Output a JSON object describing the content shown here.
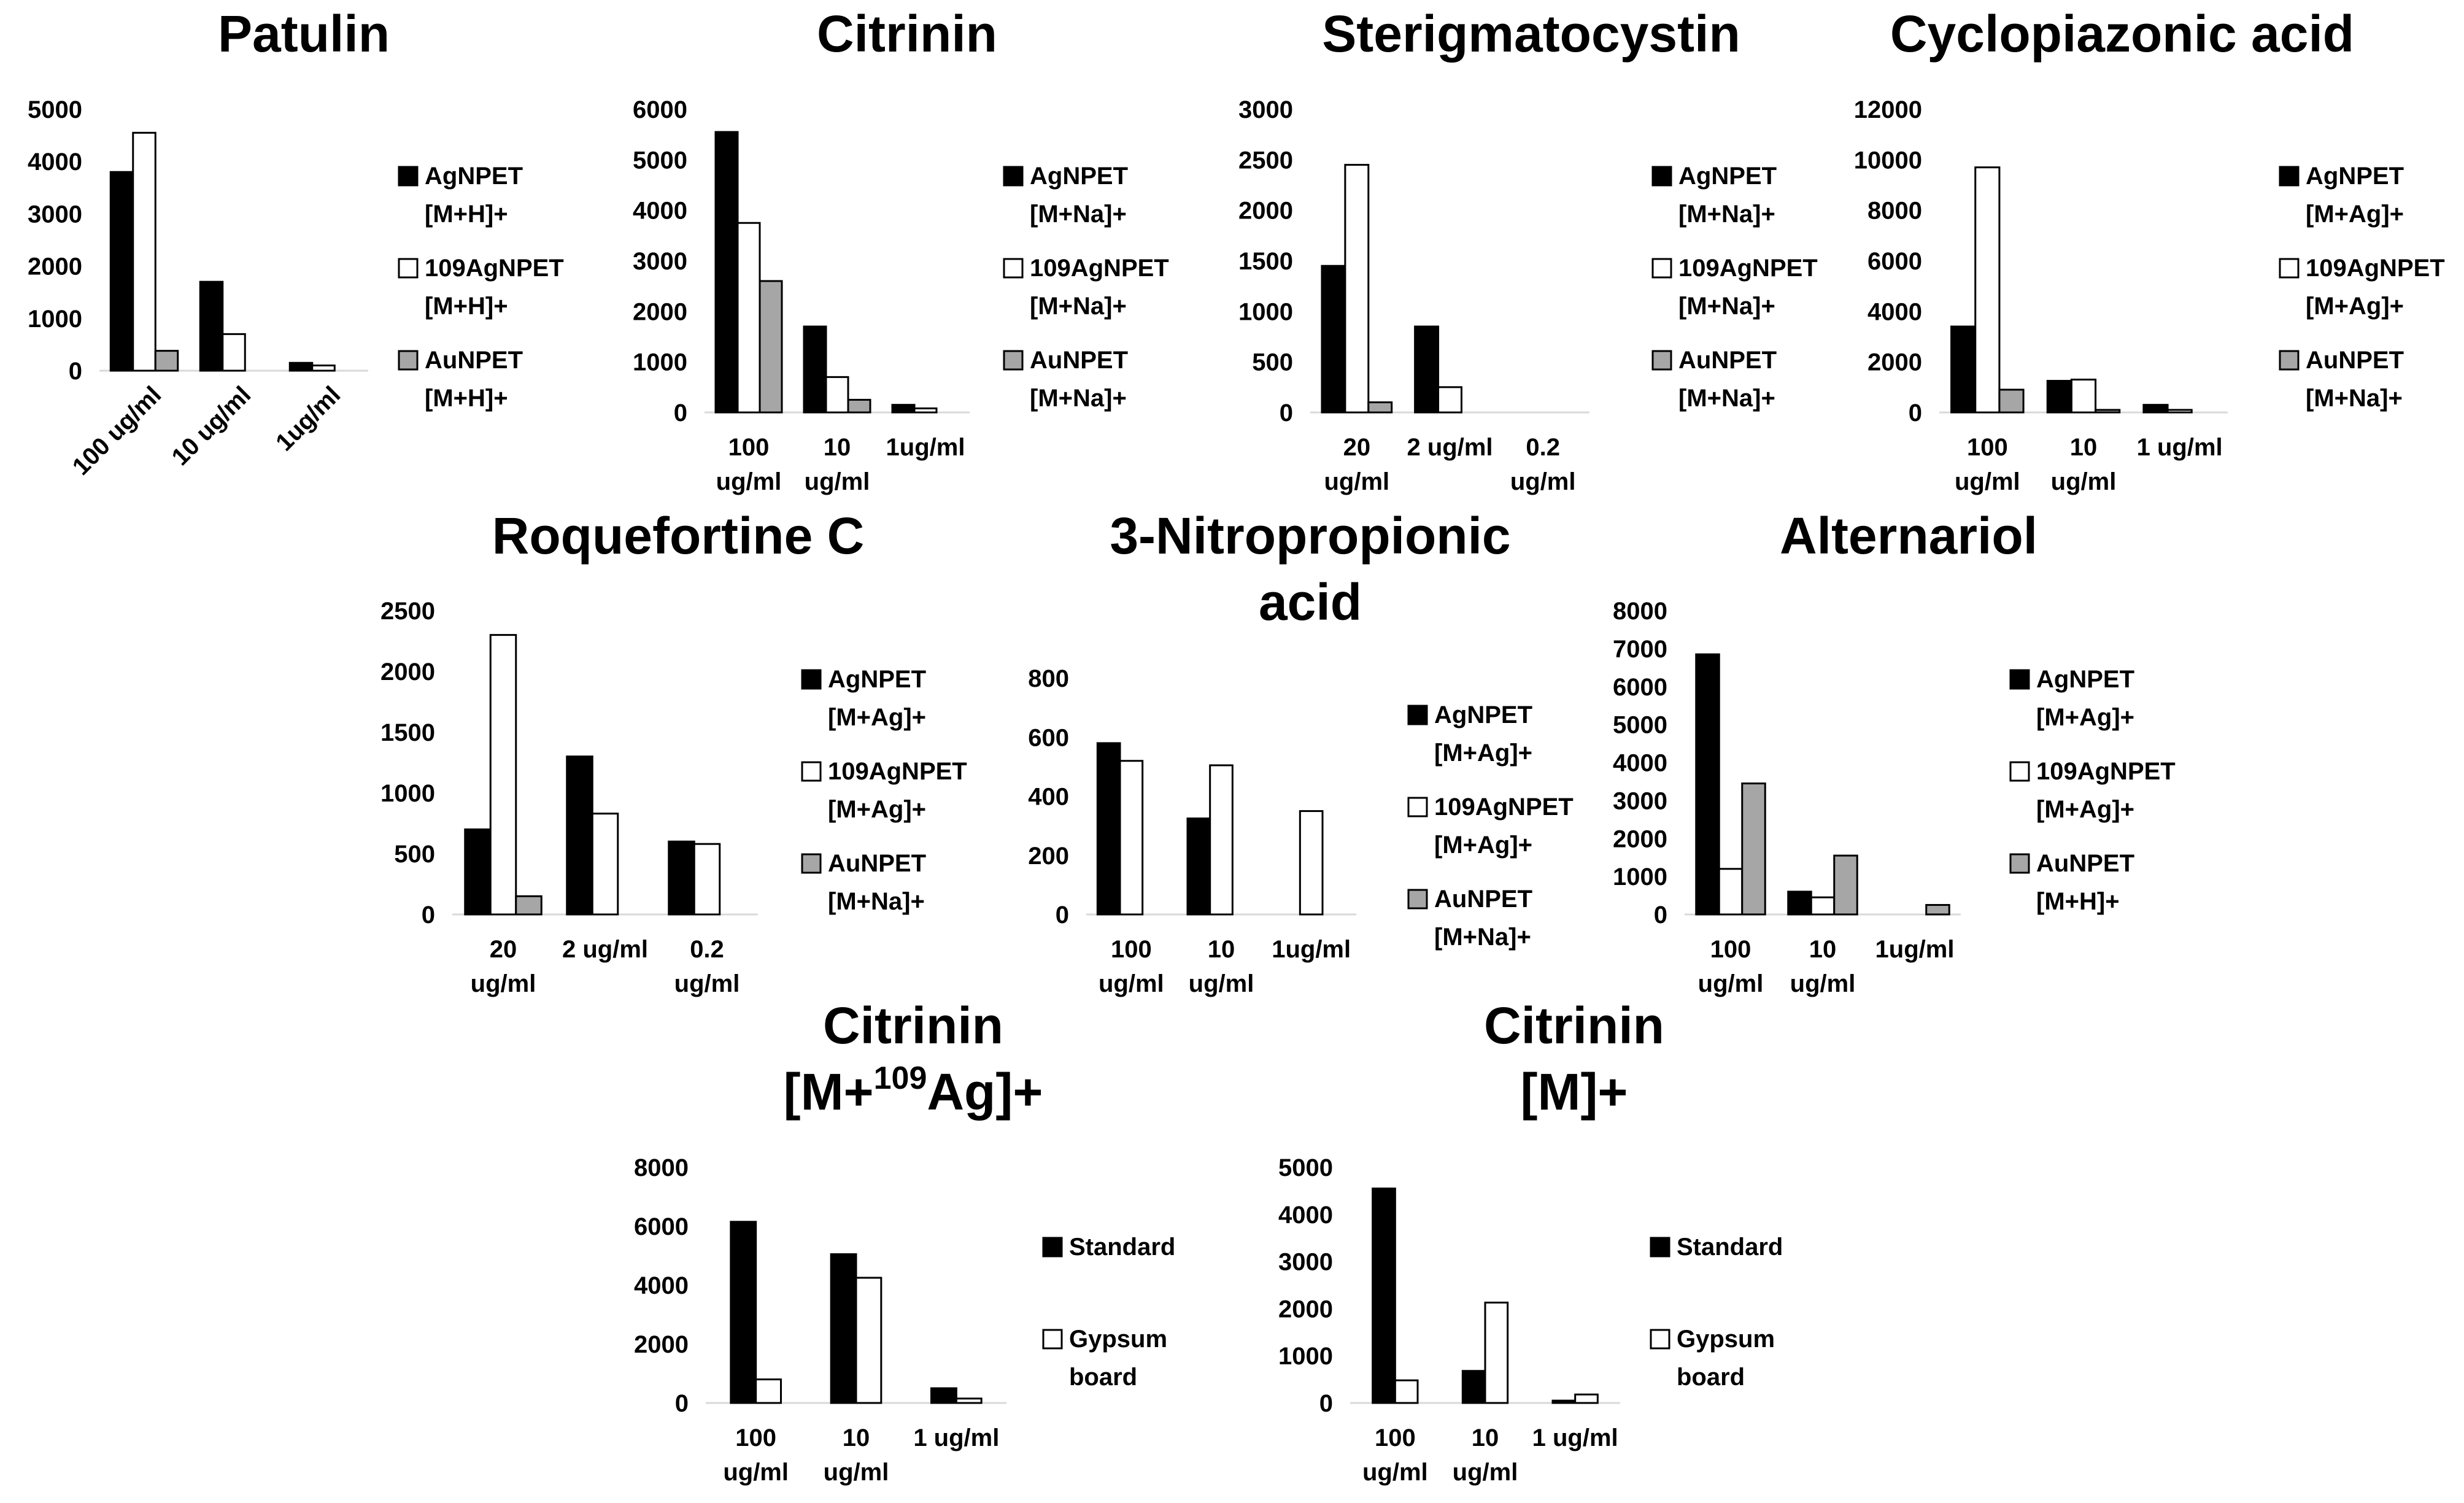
{
  "colors": {
    "black": "#000000",
    "white": "#ffffff",
    "gray": "#a6a6a6"
  },
  "chart_data": [
    {
      "type": "bar",
      "title": [
        "Patulin"
      ],
      "categories": [
        [
          "100 ug/ml"
        ],
        [
          "10 ug/ml"
        ],
        [
          "1ug/ml"
        ]
      ],
      "rotated_labels": true,
      "yticks": [
        "0",
        "1000",
        "2000",
        "3000",
        "4000",
        "5000"
      ],
      "ylim": [
        0,
        5000
      ],
      "series": [
        {
          "name": [
            "AgNPET",
            "[M+H]+"
          ],
          "color": "black",
          "values": [
            3800,
            1700,
            150
          ]
        },
        {
          "name": [
            "109AgNPET",
            "[M+H]+"
          ],
          "color": "white",
          "values": [
            4550,
            700,
            100
          ]
        },
        {
          "name": [
            "AuNPET",
            "[M+H]+"
          ],
          "color": "gray",
          "values": [
            380,
            0,
            0
          ]
        }
      ]
    },
    {
      "type": "bar",
      "title": [
        "Citrinin"
      ],
      "categories": [
        [
          "100",
          "ug/ml"
        ],
        [
          "10",
          "ug/ml"
        ],
        [
          "1ug/ml"
        ]
      ],
      "yticks": [
        "0",
        "1000",
        "2000",
        "3000",
        "4000",
        "5000",
        "6000"
      ],
      "ylim": [
        0,
        6000
      ],
      "series": [
        {
          "name": [
            "AgNPET",
            "[M+Na]+"
          ],
          "color": "black",
          "values": [
            5550,
            1700,
            150
          ]
        },
        {
          "name": [
            "109AgNPET",
            "[M+Na]+"
          ],
          "color": "white",
          "values": [
            3750,
            700,
            80
          ]
        },
        {
          "name": [
            "AuNPET",
            "[M+Na]+"
          ],
          "color": "gray",
          "values": [
            2600,
            250,
            0
          ]
        }
      ]
    },
    {
      "type": "bar",
      "title": [
        "Sterigmatocystin"
      ],
      "categories": [
        [
          "20",
          "ug/ml"
        ],
        [
          "2 ug/ml"
        ],
        [
          "0.2",
          "ug/ml"
        ]
      ],
      "yticks": [
        "0",
        "500",
        "1000",
        "1500",
        "2000",
        "2500",
        "3000"
      ],
      "ylim": [
        0,
        3000
      ],
      "series": [
        {
          "name": [
            "AgNPET",
            "[M+Na]+"
          ],
          "color": "black",
          "values": [
            1450,
            850,
            0
          ]
        },
        {
          "name": [
            "109AgNPET",
            "[M+Na]+"
          ],
          "color": "white",
          "values": [
            2450,
            250,
            0
          ]
        },
        {
          "name": [
            "AuNPET",
            "[M+Na]+"
          ],
          "color": "gray",
          "values": [
            100,
            0,
            0
          ]
        }
      ]
    },
    {
      "type": "bar",
      "title": [
        "Cyclopiazonic acid"
      ],
      "categories": [
        [
          "100",
          "ug/ml"
        ],
        [
          "10",
          "ug/ml"
        ],
        [
          "1 ug/ml"
        ]
      ],
      "yticks": [
        "0",
        "2000",
        "4000",
        "6000",
        "8000",
        "10000",
        "12000"
      ],
      "ylim": [
        0,
        12000
      ],
      "series": [
        {
          "name": [
            "AgNPET",
            "[M+Ag]+"
          ],
          "color": "black",
          "values": [
            3400,
            1250,
            300
          ]
        },
        {
          "name": [
            "109AgNPET",
            "[M+Ag]+"
          ],
          "color": "white",
          "values": [
            9700,
            1300,
            100
          ]
        },
        {
          "name": [
            "AuNPET",
            "[M+Na]+"
          ],
          "color": "gray",
          "values": [
            900,
            100,
            0
          ]
        }
      ]
    },
    {
      "type": "bar",
      "title": [
        "Roquefortine C"
      ],
      "categories": [
        [
          "20",
          "ug/ml"
        ],
        [
          "2 ug/ml"
        ],
        [
          "0.2",
          "ug/ml"
        ]
      ],
      "yticks": [
        "0",
        "500",
        "1000",
        "1500",
        "2000",
        "2500"
      ],
      "ylim": [
        0,
        2500
      ],
      "series": [
        {
          "name": [
            "AgNPET",
            "[M+Ag]+"
          ],
          "color": "black",
          "values": [
            700,
            1300,
            600
          ]
        },
        {
          "name": [
            "109AgNPET",
            "[M+Ag]+"
          ],
          "color": "white",
          "values": [
            2300,
            830,
            580
          ]
        },
        {
          "name": [
            "AuNPET",
            "[M+Na]+"
          ],
          "color": "gray",
          "values": [
            150,
            0,
            0
          ]
        }
      ]
    },
    {
      "type": "bar",
      "title": [
        "3-Nitropropionic",
        "acid"
      ],
      "categories": [
        [
          "100",
          "ug/ml"
        ],
        [
          "10",
          "ug/ml"
        ],
        [
          "1ug/ml"
        ]
      ],
      "yticks": [
        "0",
        "200",
        "400",
        "600",
        "800"
      ],
      "ylim": [
        0,
        800
      ],
      "series": [
        {
          "name": [
            "AgNPET",
            "[M+Ag]+"
          ],
          "color": "black",
          "values": [
            580,
            325,
            0
          ]
        },
        {
          "name": [
            "109AgNPET",
            "[M+Ag]+"
          ],
          "color": "white",
          "values": [
            520,
            505,
            350
          ]
        },
        {
          "name": [
            "AuNPET",
            "[M+Na]+"
          ],
          "color": "gray",
          "values": [
            0,
            0,
            0
          ]
        }
      ]
    },
    {
      "type": "bar",
      "title": [
        "Alternariol"
      ],
      "categories": [
        [
          "100",
          "ug/ml"
        ],
        [
          "10",
          "ug/ml"
        ],
        [
          "1ug/ml"
        ]
      ],
      "yticks": [
        "0",
        "1000",
        "2000",
        "3000",
        "4000",
        "5000",
        "6000",
        "7000",
        "8000"
      ],
      "ylim": [
        0,
        8000
      ],
      "series": [
        {
          "name": [
            "AgNPET",
            "[M+Ag]+"
          ],
          "color": "black",
          "values": [
            6850,
            600,
            0
          ]
        },
        {
          "name": [
            "109AgNPET",
            "[M+Ag]+"
          ],
          "color": "white",
          "values": [
            1200,
            450,
            0
          ]
        },
        {
          "name": [
            "AuNPET",
            "[M+H]+"
          ],
          "color": "gray",
          "values": [
            3450,
            1550,
            250
          ]
        }
      ]
    },
    {
      "type": "bar",
      "title": [
        "Citrinin",
        "[M+",
        "109",
        "Ag]+"
      ],
      "superscript_title": true,
      "categories": [
        [
          "100",
          "ug/ml"
        ],
        [
          "10",
          "ug/ml"
        ],
        [
          "1 ug/ml"
        ]
      ],
      "yticks": [
        "0",
        "2000",
        "4000",
        "6000",
        "8000"
      ],
      "ylim": [
        0,
        8000
      ],
      "series": [
        {
          "name": [
            "Standard"
          ],
          "color": "black",
          "values": [
            6150,
            5050,
            500
          ]
        },
        {
          "name": [
            "Gypsum",
            "board"
          ],
          "color": "white",
          "values": [
            800,
            4250,
            150
          ]
        }
      ]
    },
    {
      "type": "bar",
      "title": [
        "Citrinin",
        "[M]+"
      ],
      "categories": [
        [
          "100",
          "ug/ml"
        ],
        [
          "10",
          "ug/ml"
        ],
        [
          "1 ug/ml"
        ]
      ],
      "yticks": [
        "0",
        "1000",
        "2000",
        "3000",
        "4000",
        "5000"
      ],
      "ylim": [
        0,
        5000
      ],
      "series": [
        {
          "name": [
            "Standard"
          ],
          "color": "black",
          "values": [
            4550,
            680,
            50
          ]
        },
        {
          "name": [
            "Gypsum",
            "board"
          ],
          "color": "white",
          "values": [
            480,
            2130,
            180
          ]
        }
      ]
    }
  ]
}
